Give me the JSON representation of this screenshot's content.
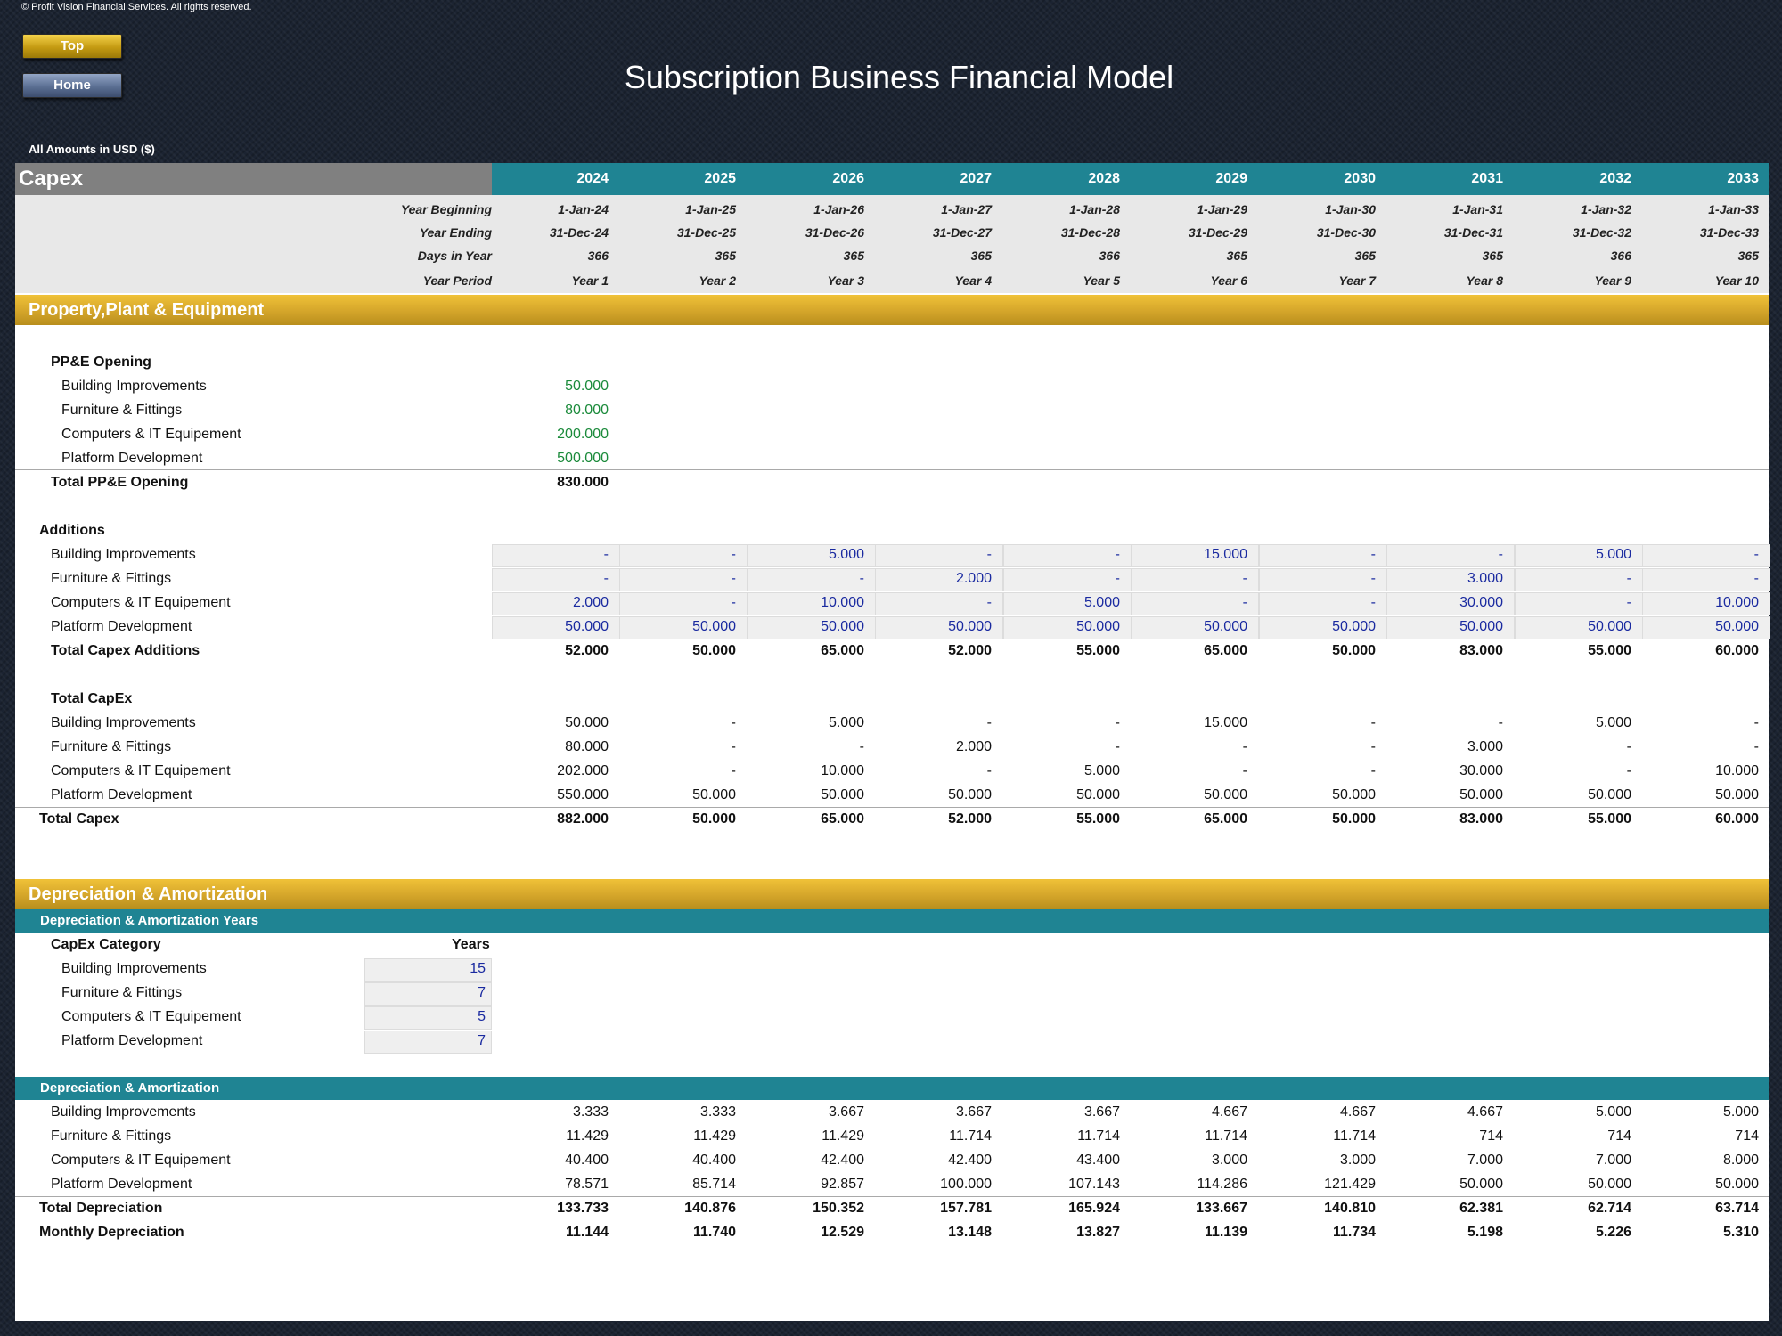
{
  "copyright": "© Profit Vision Financial Services. All rights reserved.",
  "nav": {
    "top": "Top",
    "home": "Home"
  },
  "title": "Subscription Business Financial Model",
  "units": "All Amounts in  USD ($)",
  "sheet": {
    "section_label": "Capex",
    "years": [
      "2024",
      "2025",
      "2026",
      "2027",
      "2028",
      "2029",
      "2030",
      "2031",
      "2032",
      "2033"
    ],
    "header_rows": [
      {
        "label": "Year Beginning",
        "values": [
          "1-Jan-24",
          "1-Jan-25",
          "1-Jan-26",
          "1-Jan-27",
          "1-Jan-28",
          "1-Jan-29",
          "1-Jan-30",
          "1-Jan-31",
          "1-Jan-32",
          "1-Jan-33"
        ]
      },
      {
        "label": "Year Ending",
        "values": [
          "31-Dec-24",
          "31-Dec-25",
          "31-Dec-26",
          "31-Dec-27",
          "31-Dec-28",
          "31-Dec-29",
          "31-Dec-30",
          "31-Dec-31",
          "31-Dec-32",
          "31-Dec-33"
        ]
      },
      {
        "label": "Days in Year",
        "values": [
          "366",
          "365",
          "365",
          "365",
          "366",
          "365",
          "365",
          "365",
          "366",
          "365"
        ]
      },
      {
        "label": "Year Period",
        "values": [
          "Year 1",
          "Year 2",
          "Year 3",
          "Year 4",
          "Year 5",
          "Year 6",
          "Year 7",
          "Year 8",
          "Year 9",
          "Year 10"
        ]
      }
    ]
  },
  "ppe": {
    "band": "Property,Plant & Equipment",
    "opening_title": "PP&E Opening",
    "opening": [
      {
        "label": "Building Improvements",
        "value": "50.000"
      },
      {
        "label": "Furniture & Fittings",
        "value": "80.000"
      },
      {
        "label": "Computers & IT Equipement",
        "value": "200.000"
      },
      {
        "label": "Platform Development",
        "value": "500.000"
      }
    ],
    "opening_total": {
      "label": "Total PP&E Opening",
      "value": "830.000"
    },
    "additions_title": "Additions",
    "additions": [
      {
        "label": "Building Improvements",
        "values": [
          "-",
          "-",
          "5.000",
          "-",
          "-",
          "15.000",
          "-",
          "-",
          "5.000",
          "-"
        ]
      },
      {
        "label": "Furniture & Fittings",
        "values": [
          "-",
          "-",
          "-",
          "2.000",
          "-",
          "-",
          "-",
          "3.000",
          "-",
          "-"
        ]
      },
      {
        "label": "Computers & IT Equipement",
        "values": [
          "2.000",
          "-",
          "10.000",
          "-",
          "5.000",
          "-",
          "-",
          "30.000",
          "-",
          "10.000"
        ]
      },
      {
        "label": "Platform Development",
        "values": [
          "50.000",
          "50.000",
          "50.000",
          "50.000",
          "50.000",
          "50.000",
          "50.000",
          "50.000",
          "50.000",
          "50.000"
        ]
      }
    ],
    "additions_total": {
      "label": "Total Capex Additions",
      "values": [
        "52.000",
        "50.000",
        "65.000",
        "52.000",
        "55.000",
        "65.000",
        "50.000",
        "83.000",
        "55.000",
        "60.000"
      ]
    },
    "capex_title": "Total CapEx",
    "capex": [
      {
        "label": "Building Improvements",
        "values": [
          "50.000",
          "-",
          "5.000",
          "-",
          "-",
          "15.000",
          "-",
          "-",
          "5.000",
          "-"
        ]
      },
      {
        "label": "Furniture & Fittings",
        "values": [
          "80.000",
          "-",
          "-",
          "2.000",
          "-",
          "-",
          "-",
          "3.000",
          "-",
          "-"
        ]
      },
      {
        "label": "Computers & IT Equipement",
        "values": [
          "202.000",
          "-",
          "10.000",
          "-",
          "5.000",
          "-",
          "-",
          "30.000",
          "-",
          "10.000"
        ]
      },
      {
        "label": "Platform Development",
        "values": [
          "550.000",
          "50.000",
          "50.000",
          "50.000",
          "50.000",
          "50.000",
          "50.000",
          "50.000",
          "50.000",
          "50.000"
        ]
      }
    ],
    "capex_total": {
      "label": "Total Capex",
      "values": [
        "882.000",
        "50.000",
        "65.000",
        "52.000",
        "55.000",
        "65.000",
        "50.000",
        "83.000",
        "55.000",
        "60.000"
      ]
    }
  },
  "da": {
    "band": "Depreciation & Amortization",
    "years_band": "Depreciation & Amortization Years",
    "category_header": "CapEx Category",
    "years_header": "Years",
    "years_rows": [
      {
        "label": "Building Improvements",
        "value": "15"
      },
      {
        "label": "Furniture & Fittings",
        "value": "7"
      },
      {
        "label": "Computers & IT Equipement",
        "value": "5"
      },
      {
        "label": "Platform Development",
        "value": "7"
      }
    ],
    "schedule_band": "Depreciation & Amortization",
    "schedule": [
      {
        "label": "Building Improvements",
        "values": [
          "3.333",
          "3.333",
          "3.667",
          "3.667",
          "3.667",
          "4.667",
          "4.667",
          "4.667",
          "5.000",
          "5.000"
        ]
      },
      {
        "label": "Furniture & Fittings",
        "values": [
          "11.429",
          "11.429",
          "11.429",
          "11.714",
          "11.714",
          "11.714",
          "11.714",
          "714",
          "714",
          "714"
        ]
      },
      {
        "label": "Computers & IT Equipement",
        "values": [
          "40.400",
          "40.400",
          "42.400",
          "42.400",
          "43.400",
          "3.000",
          "3.000",
          "7.000",
          "7.000",
          "8.000"
        ]
      },
      {
        "label": "Platform Development",
        "values": [
          "78.571",
          "85.714",
          "92.857",
          "100.000",
          "107.143",
          "114.286",
          "121.429",
          "50.000",
          "50.000",
          "50.000"
        ]
      }
    ],
    "total_depreciation": {
      "label": "Total Depreciation",
      "values": [
        "133.733",
        "140.876",
        "150.352",
        "157.781",
        "165.924",
        "133.667",
        "140.810",
        "62.381",
        "62.714",
        "63.714"
      ]
    },
    "monthly_depreciation": {
      "label": "Monthly Depreciation",
      "values": [
        "11.144",
        "11.740",
        "12.529",
        "13.148",
        "13.827",
        "11.139",
        "11.734",
        "5.198",
        "5.226",
        "5.310"
      ]
    }
  }
}
